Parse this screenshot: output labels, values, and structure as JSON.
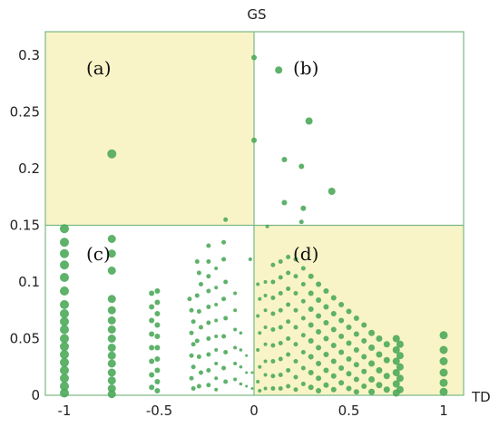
{
  "chart_data": {
    "type": "scatter",
    "title": "",
    "xlabel": "TD",
    "ylabel": "GS",
    "xlim": [
      -1.05,
      1.05
    ],
    "ylim": [
      0,
      0.32
    ],
    "x_ticks": [
      "-1",
      "-0.5",
      "0",
      "0.5",
      "1"
    ],
    "y_ticks": [
      "0",
      "0.05",
      "0.1",
      "0.15",
      "0.2",
      "0.25",
      "0.3"
    ],
    "quadrant_split": {
      "x": 0,
      "y": 0.15
    },
    "quadrants": [
      {
        "label": "(a)",
        "shaded": true
      },
      {
        "label": "(b)",
        "shaded": false
      },
      {
        "label": "(c)",
        "shaded": false
      },
      {
        "label": "(d)",
        "shaded": true
      }
    ],
    "shade_color": "#f8f4c8",
    "point_color": "#4caa5a",
    "grid_color": "#7ab884",
    "points": [
      [
        -0.75,
        0.213,
        5
      ],
      [
        0,
        0.298,
        3
      ],
      [
        0.13,
        0.287,
        4
      ],
      [
        0.29,
        0.242,
        4
      ],
      [
        0,
        0.225,
        3
      ],
      [
        0.16,
        0.208,
        3
      ],
      [
        0.25,
        0.202,
        3
      ],
      [
        0.41,
        0.18,
        4
      ],
      [
        0.16,
        0.17,
        3
      ],
      [
        0.26,
        0.165,
        3
      ],
      [
        -0.15,
        0.155,
        2.5
      ],
      [
        0.25,
        0.153,
        2.5
      ],
      [
        0.07,
        0.149,
        2
      ],
      [
        -1,
        0.147,
        5
      ],
      [
        -1,
        0.135,
        5
      ],
      [
        -1,
        0.125,
        5
      ],
      [
        -1,
        0.115,
        5
      ],
      [
        -1,
        0.104,
        5
      ],
      [
        -1,
        0.092,
        5
      ],
      [
        -1,
        0.08,
        5
      ],
      [
        -1,
        0.072,
        5
      ],
      [
        -1,
        0.065,
        5
      ],
      [
        -1,
        0.058,
        5
      ],
      [
        -1,
        0.05,
        5
      ],
      [
        -1,
        0.043,
        5
      ],
      [
        -1,
        0.036,
        5
      ],
      [
        -1,
        0.029,
        5
      ],
      [
        -1,
        0.022,
        5
      ],
      [
        -1,
        0.015,
        5
      ],
      [
        -1,
        0.008,
        5
      ],
      [
        -1,
        0.002,
        5
      ],
      [
        -0.75,
        0.138,
        4.5
      ],
      [
        -0.75,
        0.125,
        4.5
      ],
      [
        -0.75,
        0.11,
        4.5
      ],
      [
        -0.75,
        0.085,
        4.5
      ],
      [
        -0.75,
        0.075,
        4.5
      ],
      [
        -0.75,
        0.066,
        4.5
      ],
      [
        -0.75,
        0.058,
        4.5
      ],
      [
        -0.75,
        0.05,
        4.5
      ],
      [
        -0.75,
        0.042,
        4.5
      ],
      [
        -0.75,
        0.035,
        4.5
      ],
      [
        -0.75,
        0.028,
        4.5
      ],
      [
        -0.75,
        0.02,
        4.5
      ],
      [
        -0.75,
        0.013,
        4.5
      ],
      [
        -0.75,
        0.006,
        4.5
      ],
      [
        -0.75,
        0.001,
        4.5
      ],
      [
        -0.51,
        0.092,
        3
      ],
      [
        -0.51,
        0.082,
        3
      ],
      [
        -0.51,
        0.072,
        3
      ],
      [
        -0.51,
        0.062,
        3
      ],
      [
        -0.51,
        0.052,
        3
      ],
      [
        -0.51,
        0.042,
        3
      ],
      [
        -0.51,
        0.032,
        3
      ],
      [
        -0.51,
        0.022,
        3
      ],
      [
        -0.51,
        0.012,
        3
      ],
      [
        -0.51,
        0.004,
        3
      ],
      [
        -0.54,
        0.09,
        3
      ],
      [
        -0.54,
        0.078,
        3
      ],
      [
        -0.54,
        0.066,
        3
      ],
      [
        -0.54,
        0.054,
        3
      ],
      [
        -0.54,
        0.042,
        3
      ],
      [
        -0.54,
        0.03,
        3
      ],
      [
        -0.54,
        0.018,
        3
      ],
      [
        -0.54,
        0.007,
        3
      ],
      [
        -0.34,
        0.085,
        2.5
      ],
      [
        -0.33,
        0.075,
        2.5
      ],
      [
        -0.32,
        0.065,
        2.5
      ],
      [
        -0.33,
        0.055,
        2.5
      ],
      [
        -0.32,
        0.045,
        2.5
      ],
      [
        -0.33,
        0.035,
        2.5
      ],
      [
        -0.32,
        0.025,
        2.5
      ],
      [
        -0.33,
        0.015,
        2.5
      ],
      [
        -0.32,
        0.006,
        2.5
      ],
      [
        -0.3,
        0.118,
        2.5
      ],
      [
        -0.29,
        0.108,
        2.5
      ],
      [
        -0.28,
        0.098,
        2.5
      ],
      [
        -0.3,
        0.088,
        2.5
      ],
      [
        -0.29,
        0.074,
        2.5
      ],
      [
        -0.28,
        0.06,
        2.5
      ],
      [
        -0.3,
        0.048,
        2.5
      ],
      [
        -0.29,
        0.034,
        2.5
      ],
      [
        -0.28,
        0.02,
        2.5
      ],
      [
        -0.29,
        0.008,
        2.5
      ],
      [
        -0.24,
        0.132,
        2.5
      ],
      [
        -0.24,
        0.118,
        2.5
      ],
      [
        -0.24,
        0.105,
        2.5
      ],
      [
        -0.24,
        0.092,
        2.5
      ],
      [
        -0.24,
        0.078,
        2.5
      ],
      [
        -0.24,
        0.064,
        2.5
      ],
      [
        -0.24,
        0.05,
        2.5
      ],
      [
        -0.24,
        0.036,
        2.5
      ],
      [
        -0.24,
        0.022,
        2.5
      ],
      [
        -0.24,
        0.009,
        2.5
      ],
      [
        -0.2,
        0.112,
        2
      ],
      [
        -0.2,
        0.095,
        2
      ],
      [
        -0.2,
        0.08,
        2
      ],
      [
        -0.2,
        0.066,
        2
      ],
      [
        -0.2,
        0.052,
        2
      ],
      [
        -0.2,
        0.04,
        2
      ],
      [
        -0.2,
        0.028,
        2
      ],
      [
        -0.2,
        0.015,
        2
      ],
      [
        -0.2,
        0.005,
        2
      ],
      [
        -0.16,
        0.135,
        2.5
      ],
      [
        -0.16,
        0.12,
        2.5
      ],
      [
        -0.15,
        0.1,
        2.5
      ],
      [
        -0.16,
        0.085,
        2.5
      ],
      [
        -0.15,
        0.068,
        2.5
      ],
      [
        -0.16,
        0.052,
        2.5
      ],
      [
        -0.15,
        0.038,
        2.5
      ],
      [
        -0.16,
        0.024,
        2.5
      ],
      [
        -0.15,
        0.012,
        2.5
      ],
      [
        -0.1,
        0.09,
        2
      ],
      [
        -0.1,
        0.075,
        2
      ],
      [
        -0.1,
        0.058,
        2
      ],
      [
        -0.1,
        0.042,
        2
      ],
      [
        -0.1,
        0.028,
        2
      ],
      [
        -0.1,
        0.014,
        2
      ],
      [
        -0.07,
        0.055,
        1.8
      ],
      [
        -0.07,
        0.04,
        1.8
      ],
      [
        -0.07,
        0.025,
        1.8
      ],
      [
        -0.07,
        0.01,
        1.8
      ],
      [
        -0.04,
        0.035,
        1.5
      ],
      [
        -0.04,
        0.02,
        1.5
      ],
      [
        -0.04,
        0.008,
        1.5
      ],
      [
        -0.02,
        0.12,
        2
      ],
      [
        -0.01,
        0.02,
        1.5
      ],
      [
        -0.01,
        0.006,
        1.5
      ],
      [
        0.02,
        0.098,
        2
      ],
      [
        0.03,
        0.085,
        2
      ],
      [
        0.02,
        0.07,
        2
      ],
      [
        0.03,
        0.055,
        2
      ],
      [
        0.02,
        0.04,
        2
      ],
      [
        0.03,
        0.025,
        2
      ],
      [
        0.02,
        0.012,
        2
      ],
      [
        0.03,
        0.004,
        2
      ],
      [
        0.06,
        0.1,
        2
      ],
      [
        0.06,
        0.088,
        2
      ],
      [
        0.06,
        0.075,
        2
      ],
      [
        0.06,
        0.06,
        2
      ],
      [
        0.06,
        0.045,
        2
      ],
      [
        0.06,
        0.03,
        2
      ],
      [
        0.06,
        0.018,
        2
      ],
      [
        0.06,
        0.006,
        2
      ],
      [
        0.1,
        0.115,
        2.5
      ],
      [
        0.1,
        0.1,
        2.5
      ],
      [
        0.1,
        0.086,
        2.5
      ],
      [
        0.1,
        0.072,
        2.5
      ],
      [
        0.1,
        0.058,
        2.5
      ],
      [
        0.1,
        0.044,
        2.5
      ],
      [
        0.1,
        0.03,
        2.5
      ],
      [
        0.1,
        0.017,
        2.5
      ],
      [
        0.1,
        0.006,
        2.5
      ],
      [
        0.14,
        0.118,
        2.5
      ],
      [
        0.14,
        0.104,
        2.5
      ],
      [
        0.14,
        0.09,
        2.5
      ],
      [
        0.14,
        0.075,
        2.5
      ],
      [
        0.14,
        0.06,
        2.5
      ],
      [
        0.14,
        0.046,
        2.5
      ],
      [
        0.14,
        0.032,
        2.5
      ],
      [
        0.14,
        0.018,
        2.5
      ],
      [
        0.14,
        0.006,
        2.5
      ],
      [
        0.18,
        0.122,
        2.5
      ],
      [
        0.18,
        0.108,
        2.5
      ],
      [
        0.18,
        0.094,
        2.5
      ],
      [
        0.18,
        0.08,
        2.5
      ],
      [
        0.18,
        0.065,
        2.5
      ],
      [
        0.18,
        0.05,
        2.5
      ],
      [
        0.18,
        0.036,
        2.5
      ],
      [
        0.18,
        0.022,
        2.5
      ],
      [
        0.18,
        0.008,
        2.5
      ],
      [
        0.22,
        0.12,
        2.5
      ],
      [
        0.22,
        0.105,
        2.5
      ],
      [
        0.22,
        0.09,
        2.5
      ],
      [
        0.22,
        0.075,
        2.5
      ],
      [
        0.22,
        0.06,
        2.5
      ],
      [
        0.22,
        0.045,
        2.5
      ],
      [
        0.22,
        0.03,
        2.5
      ],
      [
        0.22,
        0.016,
        2.5
      ],
      [
        0.22,
        0.005,
        2.5
      ],
      [
        0.26,
        0.112,
        2.5
      ],
      [
        0.26,
        0.098,
        2.5
      ],
      [
        0.26,
        0.083,
        2.5
      ],
      [
        0.26,
        0.068,
        2.5
      ],
      [
        0.26,
        0.053,
        2.5
      ],
      [
        0.26,
        0.038,
        2.5
      ],
      [
        0.26,
        0.024,
        2.5
      ],
      [
        0.26,
        0.01,
        2.5
      ],
      [
        0.3,
        0.105,
        3
      ],
      [
        0.3,
        0.09,
        3
      ],
      [
        0.3,
        0.076,
        3
      ],
      [
        0.3,
        0.062,
        3
      ],
      [
        0.3,
        0.048,
        3
      ],
      [
        0.3,
        0.034,
        3
      ],
      [
        0.3,
        0.02,
        3
      ],
      [
        0.3,
        0.007,
        3
      ],
      [
        0.34,
        0.098,
        3
      ],
      [
        0.34,
        0.084,
        3
      ],
      [
        0.34,
        0.07,
        3
      ],
      [
        0.34,
        0.056,
        3
      ],
      [
        0.34,
        0.042,
        3
      ],
      [
        0.34,
        0.028,
        3
      ],
      [
        0.34,
        0.015,
        3
      ],
      [
        0.34,
        0.004,
        3
      ],
      [
        0.38,
        0.092,
        3
      ],
      [
        0.38,
        0.078,
        3
      ],
      [
        0.38,
        0.064,
        3
      ],
      [
        0.38,
        0.05,
        3
      ],
      [
        0.38,
        0.036,
        3
      ],
      [
        0.38,
        0.022,
        3
      ],
      [
        0.38,
        0.009,
        3
      ],
      [
        0.42,
        0.086,
        3
      ],
      [
        0.42,
        0.072,
        3
      ],
      [
        0.42,
        0.058,
        3
      ],
      [
        0.42,
        0.044,
        3
      ],
      [
        0.42,
        0.03,
        3
      ],
      [
        0.42,
        0.017,
        3
      ],
      [
        0.42,
        0.005,
        3
      ],
      [
        0.46,
        0.08,
        3
      ],
      [
        0.46,
        0.066,
        3
      ],
      [
        0.46,
        0.052,
        3
      ],
      [
        0.46,
        0.038,
        3
      ],
      [
        0.46,
        0.024,
        3
      ],
      [
        0.46,
        0.011,
        3
      ],
      [
        0.5,
        0.074,
        3
      ],
      [
        0.5,
        0.06,
        3
      ],
      [
        0.5,
        0.046,
        3
      ],
      [
        0.5,
        0.032,
        3
      ],
      [
        0.5,
        0.019,
        3
      ],
      [
        0.5,
        0.006,
        3
      ],
      [
        0.54,
        0.068,
        3
      ],
      [
        0.54,
        0.054,
        3
      ],
      [
        0.54,
        0.04,
        3
      ],
      [
        0.54,
        0.027,
        3
      ],
      [
        0.54,
        0.014,
        3
      ],
      [
        0.54,
        0.003,
        3
      ],
      [
        0.58,
        0.062,
        3
      ],
      [
        0.58,
        0.048,
        3
      ],
      [
        0.58,
        0.034,
        3
      ],
      [
        0.58,
        0.021,
        3
      ],
      [
        0.58,
        0.008,
        3
      ],
      [
        0.62,
        0.055,
        3.5
      ],
      [
        0.62,
        0.042,
        3.5
      ],
      [
        0.62,
        0.028,
        3.5
      ],
      [
        0.62,
        0.014,
        3.5
      ],
      [
        0.62,
        0.003,
        3.5
      ],
      [
        0.66,
        0.05,
        3.5
      ],
      [
        0.66,
        0.036,
        3.5
      ],
      [
        0.66,
        0.022,
        3.5
      ],
      [
        0.66,
        0.009,
        3.5
      ],
      [
        0.7,
        0.045,
        3.5
      ],
      [
        0.7,
        0.031,
        3.5
      ],
      [
        0.7,
        0.017,
        3.5
      ],
      [
        0.7,
        0.005,
        3.5
      ],
      [
        0.75,
        0.05,
        4
      ],
      [
        0.75,
        0.04,
        4
      ],
      [
        0.75,
        0.03,
        4
      ],
      [
        0.75,
        0.02,
        4
      ],
      [
        0.75,
        0.01,
        4
      ],
      [
        0.75,
        0.002,
        4
      ],
      [
        0.77,
        0.045,
        4
      ],
      [
        0.77,
        0.035,
        4
      ],
      [
        0.77,
        0.025,
        4
      ],
      [
        0.77,
        0.015,
        4
      ],
      [
        0.77,
        0.005,
        4
      ],
      [
        1,
        0.053,
        4.5
      ],
      [
        1,
        0.04,
        4.5
      ],
      [
        1,
        0.03,
        4.5
      ],
      [
        1,
        0.02,
        4.5
      ],
      [
        1,
        0.011,
        4.5
      ],
      [
        1,
        0.003,
        4.5
      ]
    ]
  }
}
